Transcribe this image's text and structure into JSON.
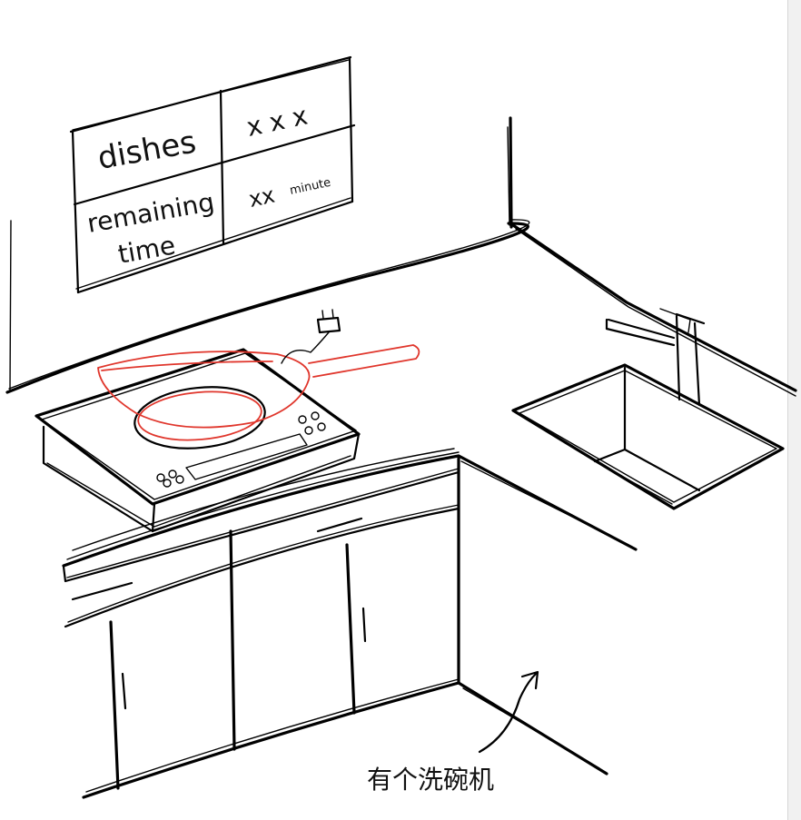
{
  "sign": {
    "rows": [
      {
        "label": "dishes",
        "value": "x x x"
      },
      {
        "label_line1": "remaining",
        "label_line2": "time",
        "value_main": "xx",
        "value_unit": "minute"
      }
    ]
  },
  "annotation": {
    "text": "有个洗碗机"
  },
  "colors": {
    "ink": "#000000",
    "pan_highlight": "#e0362c",
    "background": "#ffffff"
  }
}
